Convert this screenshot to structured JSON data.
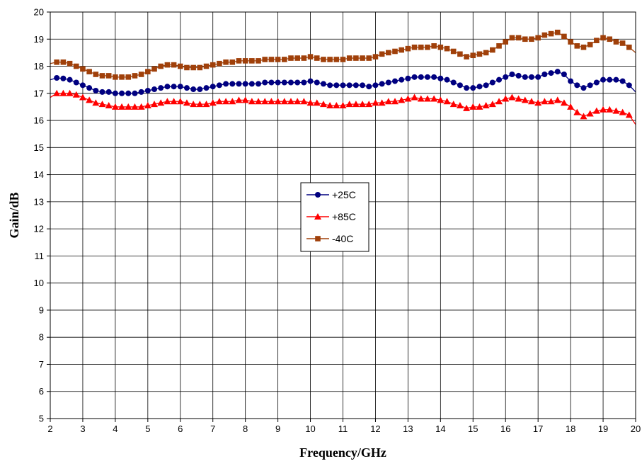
{
  "chart_data": {
    "type": "line",
    "xlabel": "Frequency/GHz",
    "ylabel": "Gain/dB",
    "xlim": [
      2,
      20
    ],
    "ylim": [
      5,
      20
    ],
    "x_ticks": [
      "2",
      "3",
      "4",
      "5",
      "6",
      "7",
      "8",
      "9",
      "10",
      "11",
      "12",
      "13",
      "14",
      "15",
      "16",
      "17",
      "18",
      "19",
      "20"
    ],
    "y_ticks": [
      "5",
      "6",
      "7",
      "8",
      "9",
      "10",
      "11",
      "12",
      "13",
      "14",
      "15",
      "16",
      "17",
      "18",
      "19",
      "20"
    ],
    "grid": true,
    "legend_placement": "center",
    "x": [
      2.0,
      2.2,
      2.4,
      2.6,
      2.8,
      3.0,
      3.2,
      3.4,
      3.6,
      3.8,
      4.0,
      4.2,
      4.4,
      4.6,
      4.8,
      5.0,
      5.2,
      5.4,
      5.6,
      5.8,
      6.0,
      6.2,
      6.4,
      6.6,
      6.8,
      7.0,
      7.2,
      7.4,
      7.6,
      7.8,
      8.0,
      8.2,
      8.4,
      8.6,
      8.8,
      9.0,
      9.2,
      9.4,
      9.6,
      9.8,
      10.0,
      10.2,
      10.4,
      10.6,
      10.8,
      11.0,
      11.2,
      11.4,
      11.6,
      11.8,
      12.0,
      12.2,
      12.4,
      12.6,
      12.8,
      13.0,
      13.2,
      13.4,
      13.6,
      13.8,
      14.0,
      14.2,
      14.4,
      14.6,
      14.8,
      15.0,
      15.2,
      15.4,
      15.6,
      15.8,
      16.0,
      16.2,
      16.4,
      16.6,
      16.8,
      17.0,
      17.2,
      17.4,
      17.6,
      17.8,
      18.0,
      18.2,
      18.4,
      18.6,
      18.8,
      19.0,
      19.2,
      19.4,
      19.6,
      19.8,
      20.0
    ],
    "series": [
      {
        "name": "+25C",
        "color": "#000080",
        "marker": "circle",
        "values": [
          17.5,
          17.57,
          17.55,
          17.5,
          17.4,
          17.3,
          17.2,
          17.1,
          17.05,
          17.05,
          17.0,
          17.0,
          17.0,
          17.0,
          17.05,
          17.1,
          17.15,
          17.2,
          17.25,
          17.25,
          17.25,
          17.2,
          17.15,
          17.15,
          17.2,
          17.25,
          17.3,
          17.35,
          17.35,
          17.35,
          17.35,
          17.35,
          17.35,
          17.4,
          17.4,
          17.4,
          17.4,
          17.4,
          17.4,
          17.4,
          17.45,
          17.4,
          17.35,
          17.3,
          17.3,
          17.3,
          17.3,
          17.3,
          17.3,
          17.25,
          17.3,
          17.35,
          17.4,
          17.45,
          17.5,
          17.55,
          17.6,
          17.6,
          17.6,
          17.6,
          17.55,
          17.5,
          17.4,
          17.3,
          17.2,
          17.2,
          17.25,
          17.3,
          17.4,
          17.5,
          17.6,
          17.7,
          17.65,
          17.6,
          17.6,
          17.6,
          17.7,
          17.75,
          17.8,
          17.7,
          17.45,
          17.3,
          17.2,
          17.3,
          17.4,
          17.5,
          17.5,
          17.5,
          17.45,
          17.3,
          17.05
        ]
      },
      {
        "name": "+85C",
        "color": "#FF0000",
        "marker": "triangle",
        "values": [
          16.85,
          17.0,
          17.0,
          17.0,
          16.95,
          16.85,
          16.75,
          16.65,
          16.6,
          16.55,
          16.5,
          16.5,
          16.5,
          16.5,
          16.5,
          16.55,
          16.6,
          16.65,
          16.7,
          16.7,
          16.7,
          16.65,
          16.6,
          16.6,
          16.6,
          16.65,
          16.7,
          16.7,
          16.7,
          16.75,
          16.75,
          16.7,
          16.7,
          16.7,
          16.7,
          16.7,
          16.7,
          16.7,
          16.7,
          16.7,
          16.65,
          16.65,
          16.6,
          16.55,
          16.55,
          16.55,
          16.6,
          16.6,
          16.6,
          16.6,
          16.65,
          16.65,
          16.7,
          16.7,
          16.75,
          16.8,
          16.85,
          16.8,
          16.8,
          16.8,
          16.75,
          16.7,
          16.6,
          16.55,
          16.45,
          16.5,
          16.5,
          16.55,
          16.6,
          16.7,
          16.8,
          16.85,
          16.8,
          16.75,
          16.7,
          16.65,
          16.7,
          16.7,
          16.75,
          16.65,
          16.5,
          16.3,
          16.15,
          16.25,
          16.35,
          16.4,
          16.4,
          16.35,
          16.3,
          16.2,
          15.85
        ]
      },
      {
        "name": "-40C",
        "color": "#A0400A",
        "marker": "square",
        "values": [
          18.1,
          18.15,
          18.15,
          18.1,
          18.0,
          17.9,
          17.8,
          17.7,
          17.65,
          17.65,
          17.6,
          17.6,
          17.6,
          17.65,
          17.7,
          17.8,
          17.9,
          18.0,
          18.05,
          18.05,
          18.0,
          17.95,
          17.95,
          17.95,
          18.0,
          18.05,
          18.1,
          18.15,
          18.15,
          18.2,
          18.2,
          18.2,
          18.2,
          18.25,
          18.25,
          18.25,
          18.25,
          18.3,
          18.3,
          18.3,
          18.35,
          18.3,
          18.25,
          18.25,
          18.25,
          18.25,
          18.3,
          18.3,
          18.3,
          18.3,
          18.35,
          18.45,
          18.5,
          18.55,
          18.6,
          18.65,
          18.7,
          18.7,
          18.7,
          18.75,
          18.7,
          18.65,
          18.55,
          18.45,
          18.35,
          18.4,
          18.45,
          18.5,
          18.6,
          18.75,
          18.9,
          19.05,
          19.05,
          19.0,
          19.0,
          19.05,
          19.15,
          19.2,
          19.25,
          19.1,
          18.9,
          18.75,
          18.7,
          18.8,
          18.95,
          19.05,
          19.0,
          18.9,
          18.85,
          18.7,
          18.5
        ]
      }
    ]
  }
}
